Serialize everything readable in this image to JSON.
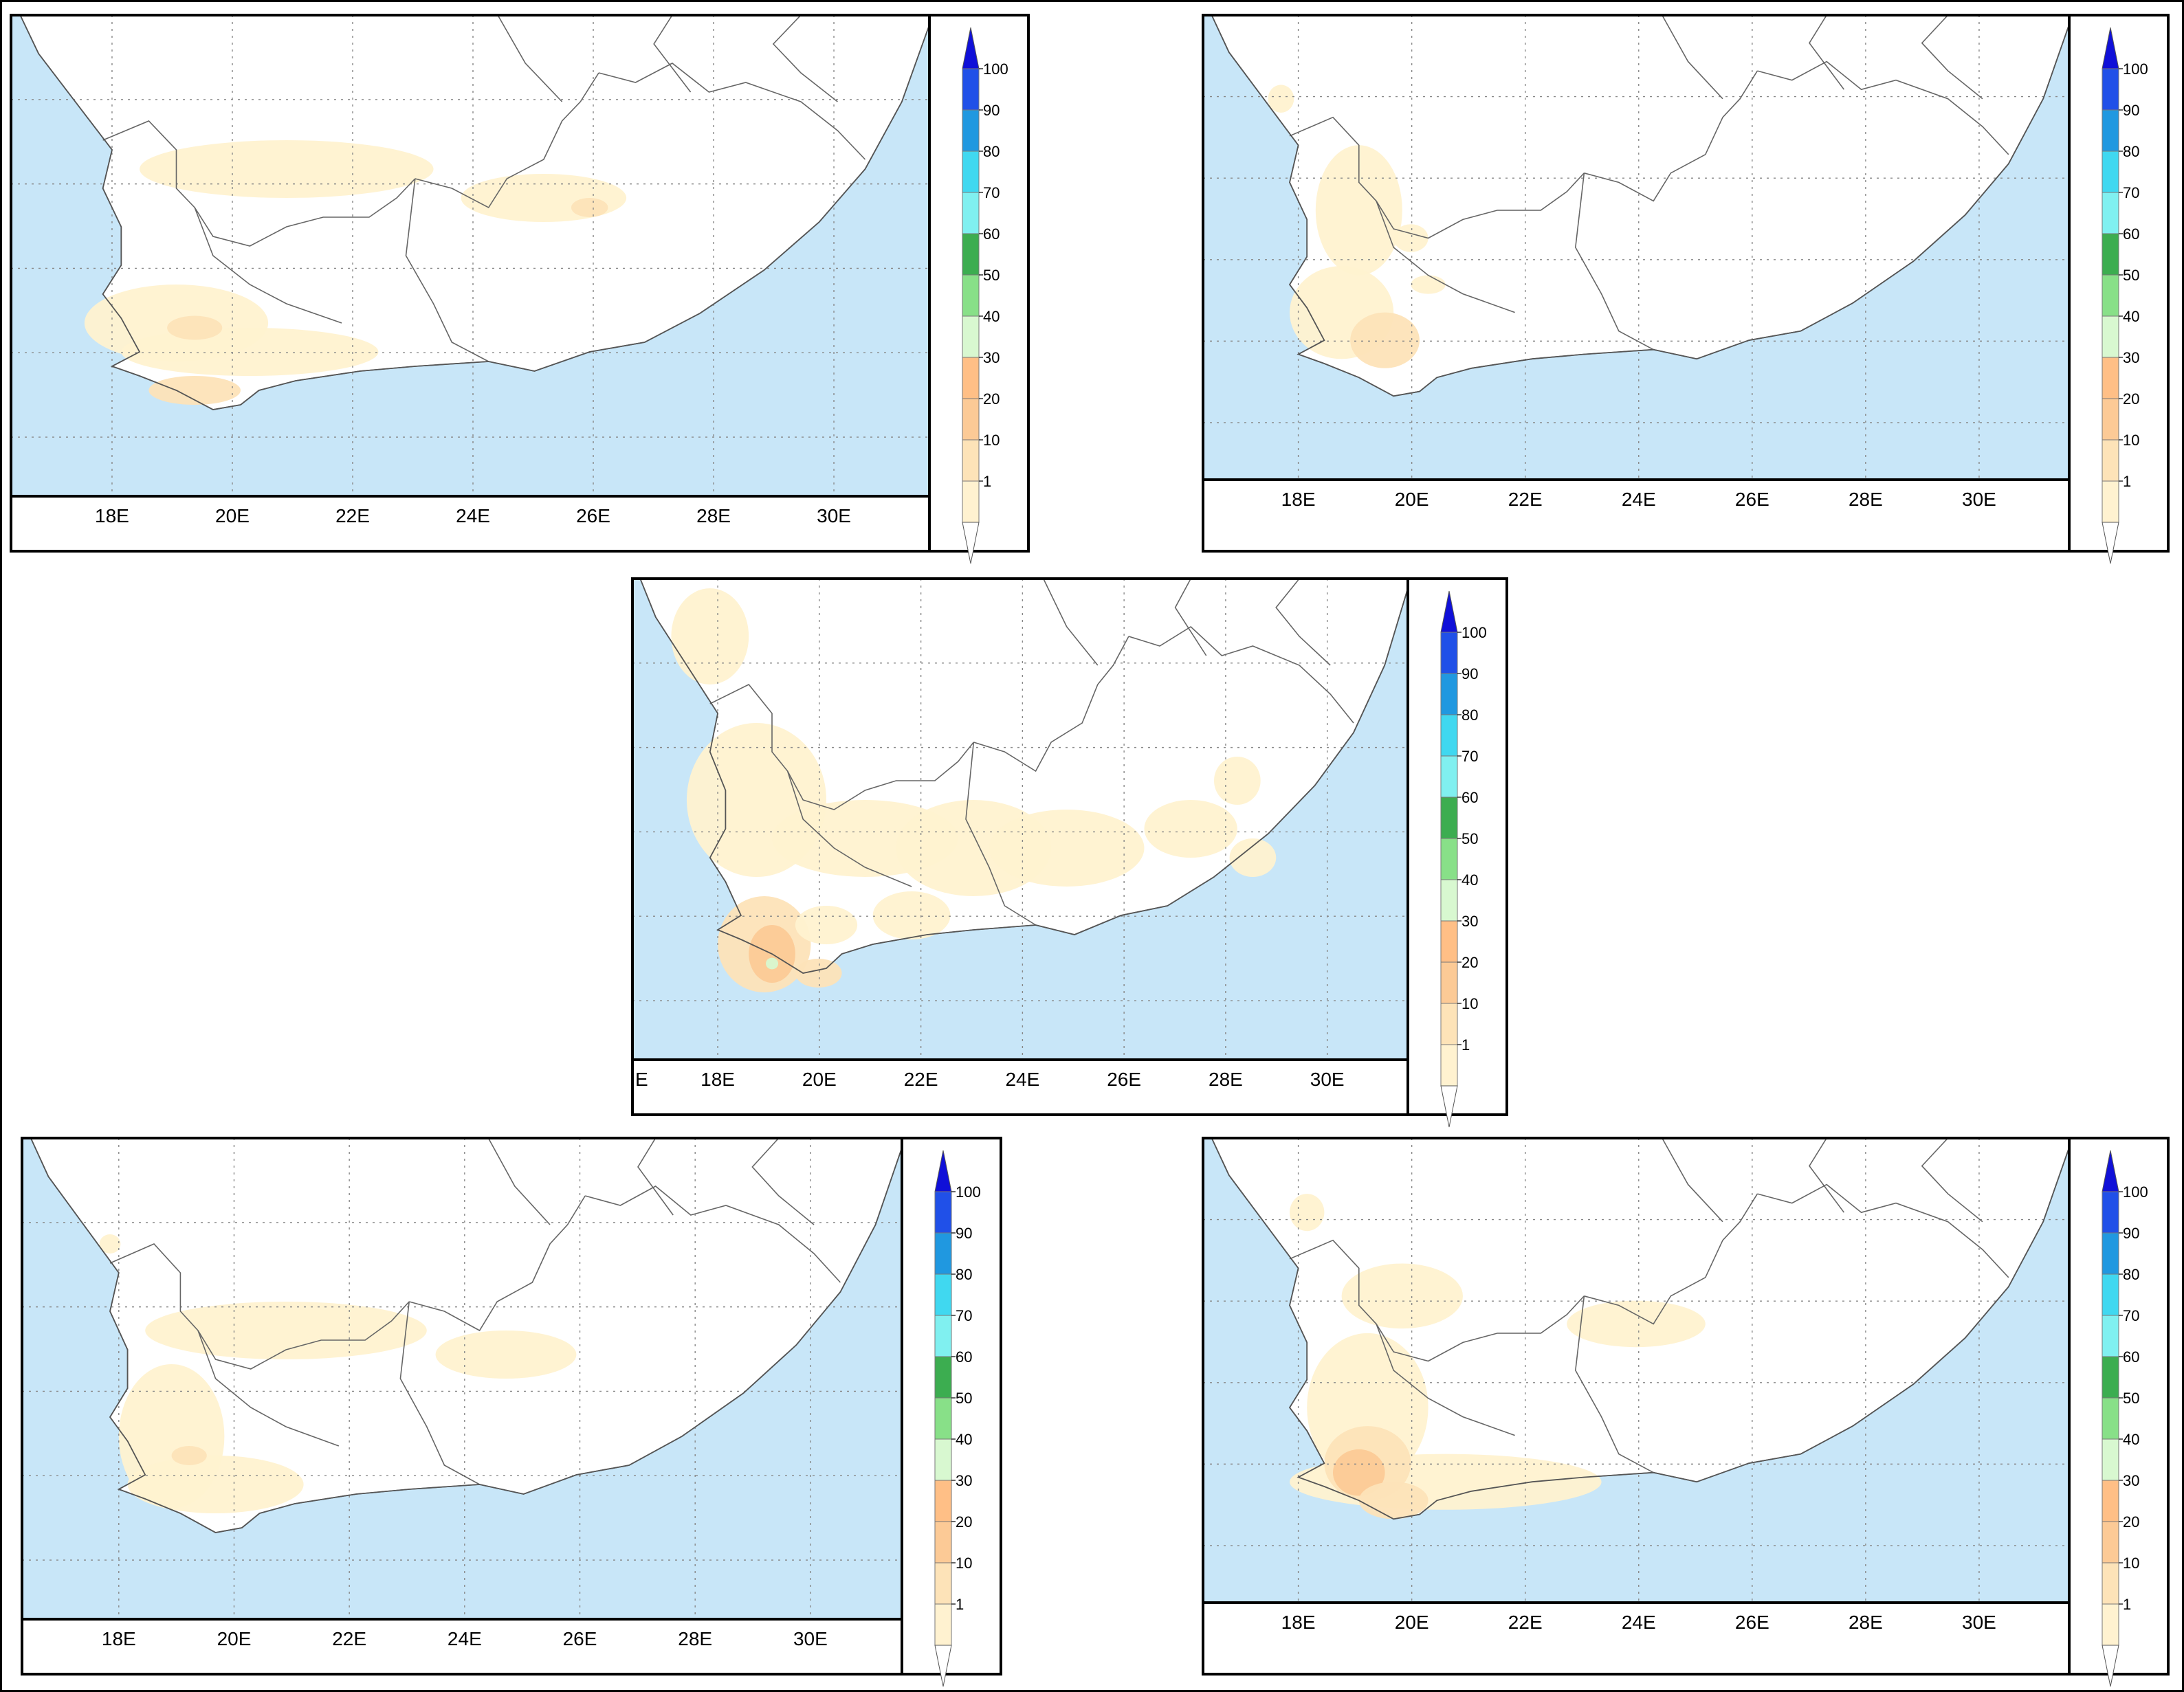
{
  "colorbar": {
    "levels": [
      {
        "label": "1",
        "color": "#fff2d0"
      },
      {
        "label": "10",
        "color": "#fde3b8"
      },
      {
        "label": "20",
        "color": "#fcca96"
      },
      {
        "label": "30",
        "color": "#ffbf86"
      },
      {
        "label": "40",
        "color": "#d8f8d0"
      },
      {
        "label": "50",
        "color": "#88e088"
      },
      {
        "label": "60",
        "color": "#3cad50"
      },
      {
        "label": "70",
        "color": "#80f0f0"
      },
      {
        "label": "80",
        "color": "#40d8f0"
      },
      {
        "label": "90",
        "color": "#2098e0"
      },
      {
        "label": "100",
        "color": "#2050e8"
      }
    ],
    "upper_triangle_color": "#1010d8",
    "lower_triangle_color": "#ffffff"
  },
  "map": {
    "ocean_color": "#c8e6f8",
    "land_color": "#ffffff",
    "grid_color": "#888888",
    "longitude_labels": [
      "18E",
      "20E",
      "22E",
      "24E",
      "26E",
      "28E",
      "30E"
    ]
  },
  "panels": [
    {
      "id": "top-left",
      "longitude_labels": [
        "18E",
        "20E",
        "22E",
        "24E",
        "26E",
        "28E",
        "30E"
      ]
    },
    {
      "id": "top-right",
      "longitude_labels": [
        "18E",
        "20E",
        "22E",
        "24E",
        "26E",
        "28E",
        "30E"
      ]
    },
    {
      "id": "center",
      "longitude_labels": [
        "E",
        "18E",
        "20E",
        "22E",
        "24E",
        "26E",
        "28E",
        "30E"
      ]
    },
    {
      "id": "bottom-left",
      "longitude_labels": [
        "18E",
        "20E",
        "22E",
        "24E",
        "26E",
        "28E",
        "30E"
      ]
    },
    {
      "id": "bottom-right",
      "longitude_labels": [
        "18E",
        "20E",
        "22E",
        "24E",
        "26E",
        "28E",
        "30E"
      ]
    }
  ]
}
